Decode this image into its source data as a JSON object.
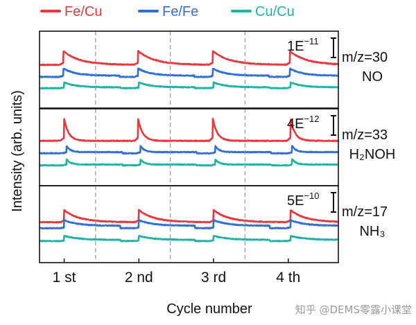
{
  "chart_data": {
    "type": "line",
    "title": "",
    "xlabel": "Cycle number",
    "ylabel": "Intensity (arb. units)",
    "xlim": [
      0,
      4
    ],
    "categories": [
      "1 st",
      "2 nd",
      "3 rd",
      "4 th"
    ],
    "colors": {
      "Fe/Cu": "#e8383d",
      "Fe/Fe": "#2f6fd8",
      "Cu/Cu": "#1fb3a3"
    },
    "legend": {
      "placement": "top",
      "entries": [
        "Fe/Cu",
        "Fe/Fe",
        "Cu/Cu"
      ]
    },
    "panels": [
      {
        "label": "m/z=30",
        "species": "NO",
        "scale_mantissa": "1E",
        "scale_exponent": "−11",
        "series": [
          {
            "name": "Fe/Cu",
            "baseline": 0.12,
            "peak_amp": 0.34,
            "decay": 0.22,
            "step": 0.0,
            "peaks": [
              0.32,
              1.32,
              2.32,
              3.35
            ]
          },
          {
            "name": "Fe/Fe",
            "baseline": -0.18,
            "peak_amp": 0.18,
            "decay": 0.16,
            "step": 0.03,
            "peaks": [
              0.32,
              1.32,
              2.32,
              3.35
            ]
          },
          {
            "name": "Cu/Cu",
            "baseline": -0.46,
            "peak_amp": 0.12,
            "decay": 0.16,
            "step": 0.02,
            "peaks": [
              0.33,
              1.33,
              2.33,
              3.36
            ]
          }
        ]
      },
      {
        "label": "m/z=33",
        "species": "H₂NOH",
        "scale_mantissa": "4E",
        "scale_exponent": "−12",
        "series": [
          {
            "name": "Fe/Cu",
            "baseline": 0.16,
            "peak_amp": 0.55,
            "decay": 0.06,
            "step": 0.0,
            "peaks": [
              0.33,
              1.32,
              2.32,
              3.36
            ]
          },
          {
            "name": "Fe/Fe",
            "baseline": -0.15,
            "peak_amp": 0.16,
            "decay": 0.05,
            "step": 0.03,
            "peaks": [
              0.36,
              1.35,
              2.35,
              3.38
            ]
          },
          {
            "name": "Cu/Cu",
            "baseline": -0.45,
            "peak_amp": 0.14,
            "decay": 0.05,
            "step": 0.02,
            "peaks": [
              0.36,
              1.35,
              2.35,
              3.38
            ]
          }
        ]
      },
      {
        "label": "m/z=17",
        "species": "NH₃",
        "scale_mantissa": "5E",
        "scale_exponent": "−10",
        "series": [
          {
            "name": "Fe/Cu",
            "baseline": 0.05,
            "peak_amp": 0.3,
            "decay": 0.2,
            "step": 0.0,
            "peaks": [
              0.33,
              1.33,
              2.33,
              3.36
            ]
          },
          {
            "name": "Fe/Fe",
            "baseline": -0.1,
            "peak_amp": 0.14,
            "decay": 0.18,
            "step": 0.06,
            "peaks": [
              0.33,
              1.33,
              2.33,
              3.36
            ]
          },
          {
            "name": "Cu/Cu",
            "baseline": -0.42,
            "peak_amp": 0.1,
            "decay": 0.18,
            "step": 0.03,
            "peaks": [
              0.33,
              1.33,
              2.33,
              3.36
            ]
          }
        ]
      }
    ],
    "cycle_boundaries": [
      0.75,
      1.75,
      2.75
    ],
    "grid": false
  },
  "watermark": "知乎 @DEMS零露小课堂"
}
